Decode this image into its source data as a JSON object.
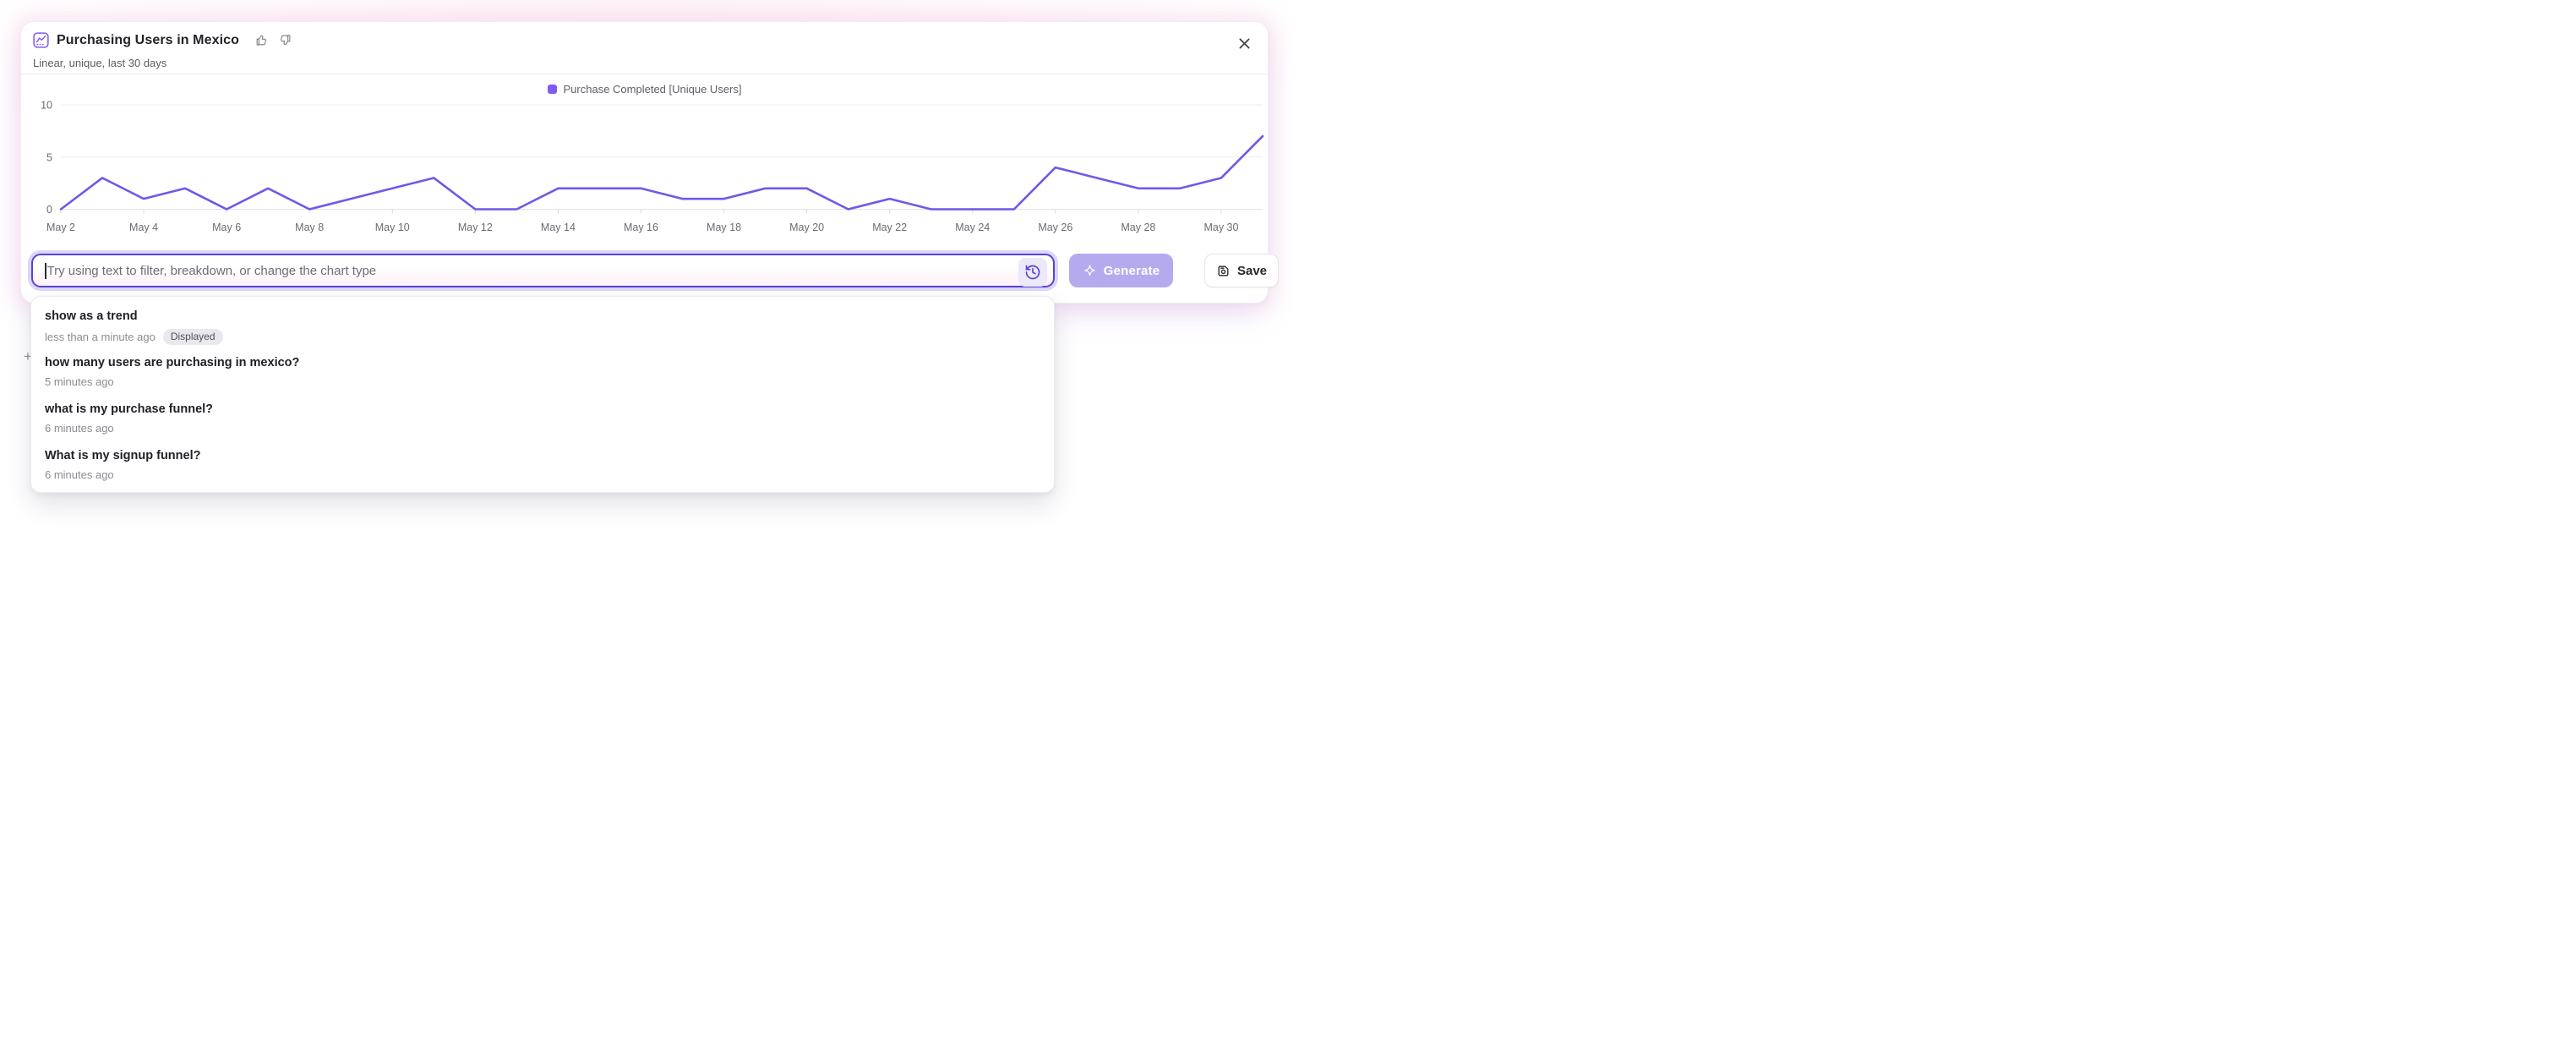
{
  "card": {
    "title": "Purchasing Users in Mexico",
    "subtitle": "Linear, unique, last 30 days"
  },
  "icons": {
    "header": "line-chart-icon",
    "feedback_up": "thumbs-up-icon",
    "feedback_down": "thumbs-down-icon",
    "close": "close-icon",
    "history": "history-icon",
    "generate": "sparkle-icon",
    "save": "save-icon"
  },
  "colors": {
    "accent": "#5742d8",
    "line": "#7257e9",
    "legend_swatch": "#7e5bf7",
    "generate_bg": "#b6aaee",
    "grid": "#ededf1",
    "baseline": "#e2e2e7",
    "axis_text": "#6b6b73"
  },
  "chart_data": {
    "type": "line",
    "title": "Purchasing Users in Mexico",
    "x": [
      "May 2",
      "May 3",
      "May 4",
      "May 5",
      "May 6",
      "May 7",
      "May 8",
      "May 9",
      "May 10",
      "May 11",
      "May 12",
      "May 13",
      "May 14",
      "May 15",
      "May 16",
      "May 17",
      "May 18",
      "May 19",
      "May 20",
      "May 21",
      "May 22",
      "May 23",
      "May 24",
      "May 25",
      "May 26",
      "May 27",
      "May 28",
      "May 29",
      "May 30",
      "May 31"
    ],
    "series": [
      {
        "name": "Purchase Completed [Unique Users]",
        "values": [
          0,
          3,
          1,
          2,
          0,
          2,
          0,
          1,
          2,
          3,
          0,
          0,
          2,
          2,
          2,
          1,
          1,
          2,
          2,
          0,
          1,
          0,
          0,
          0,
          4,
          3,
          2,
          2,
          3,
          7
        ]
      }
    ],
    "x_tick_labels": [
      "May 2",
      "May 4",
      "May 6",
      "May 8",
      "May 10",
      "May 12",
      "May 14",
      "May 16",
      "May 18",
      "May 20",
      "May 22",
      "May 24",
      "May 26",
      "May 28",
      "May 30"
    ],
    "y_ticks": [
      0,
      5,
      10
    ],
    "ylim": [
      0,
      10
    ],
    "grid": "horizontal",
    "legend_position": "top-center"
  },
  "prompt_bar": {
    "placeholder": "Try using text to filter, breakdown, or change the chart type",
    "generate_label": "Generate",
    "save_label": "Save"
  },
  "history_dropdown": {
    "plus_glyph": "+",
    "items": [
      {
        "query": "show as a trend",
        "time": "less than a minute ago",
        "badge": "Displayed"
      },
      {
        "query": "how many users are purchasing in mexico?",
        "time": "5 minutes ago",
        "badge": ""
      },
      {
        "query": "what is my purchase funnel?",
        "time": "6 minutes ago",
        "badge": ""
      },
      {
        "query": "What is my signup funnel?",
        "time": "6 minutes ago",
        "badge": ""
      }
    ]
  }
}
